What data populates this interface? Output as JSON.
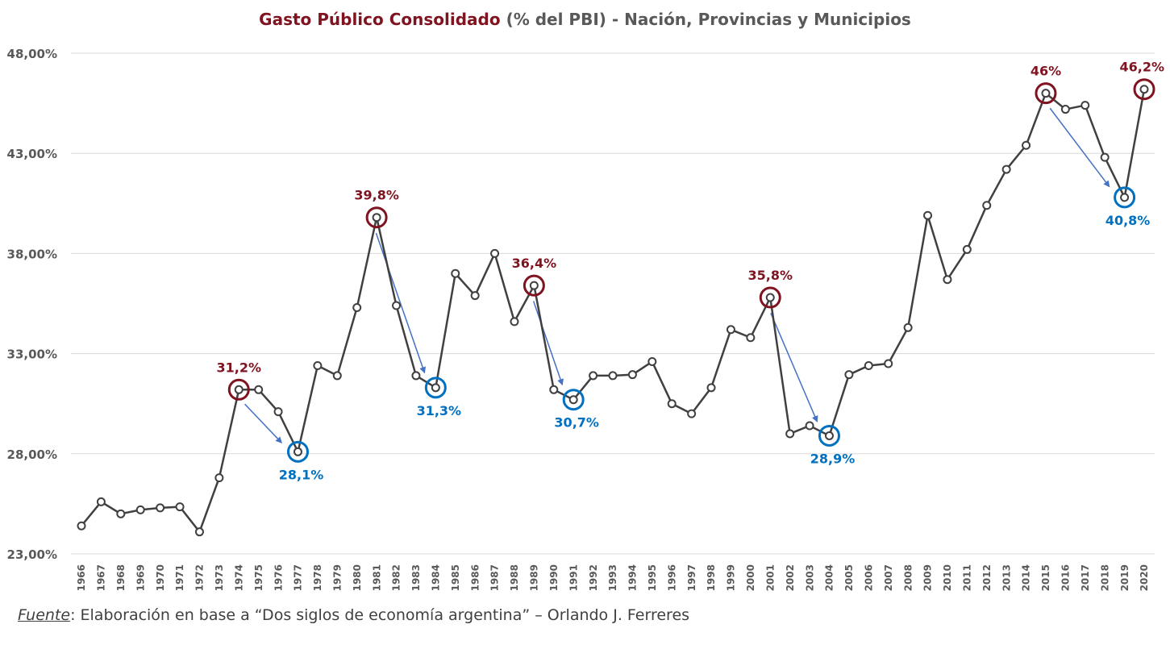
{
  "title": {
    "main": "Gasto Público Consolidado",
    "rest": " (% del PBI) - Nación, Provincias y Municipios"
  },
  "source": {
    "label": "Fuente",
    "text": ": Elaboración en base a “Dos siglos de economía argentina” – Orlando J. Ferreres"
  },
  "colors": {
    "line": "#404040",
    "peak": "#7f1420",
    "trough": "#0070c0",
    "arrow": "#4472c4",
    "grid": "#d9d9d9",
    "axis_text": "#595959"
  },
  "chart_data": {
    "type": "line",
    "x": [
      "1966",
      "1967",
      "1968",
      "1969",
      "1970",
      "1971",
      "1972",
      "1973",
      "1974",
      "1975",
      "1976",
      "1977",
      "1978",
      "1979",
      "1980",
      "1981",
      "1982",
      "1983",
      "1984",
      "1985",
      "1986",
      "1987",
      "1988",
      "1989",
      "1990",
      "1991",
      "1992",
      "1993",
      "1994",
      "1995",
      "1996",
      "1997",
      "1998",
      "1999",
      "2000",
      "2001",
      "2002",
      "2003",
      "2004",
      "2005",
      "2006",
      "2007",
      "2008",
      "2009",
      "2010",
      "2011",
      "2012",
      "2013",
      "2014",
      "2015",
      "2016",
      "2017",
      "2018",
      "2019",
      "2020"
    ],
    "series": [
      {
        "values": [
          24.4,
          25.6,
          25.0,
          25.2,
          25.3,
          25.35,
          24.1,
          26.8,
          31.2,
          31.2,
          30.1,
          28.1,
          32.4,
          31.9,
          35.3,
          39.8,
          35.4,
          31.9,
          31.3,
          37.0,
          35.9,
          38.0,
          34.6,
          36.4,
          31.2,
          30.7,
          31.9,
          31.9,
          31.95,
          32.6,
          30.5,
          30.0,
          31.3,
          34.2,
          33.8,
          35.8,
          29.0,
          29.4,
          28.9,
          31.95,
          32.4,
          32.5,
          34.3,
          39.9,
          36.7,
          38.2,
          40.4,
          42.2,
          43.4,
          46.0,
          45.2,
          45.4,
          42.8,
          40.8,
          46.2
        ]
      }
    ],
    "ylim": [
      23,
      48
    ],
    "yticks": [
      "23,00%",
      "28,00%",
      "33,00%",
      "38,00%",
      "43,00%",
      "48,00%"
    ],
    "ytick_values": [
      23,
      28,
      33,
      38,
      43,
      48
    ],
    "grid": true,
    "annotations": {
      "peaks": [
        {
          "year": "1974",
          "label": "31,2%"
        },
        {
          "year": "1981",
          "label": "39,8%"
        },
        {
          "year": "1989",
          "label": "36,4%"
        },
        {
          "year": "2001",
          "label": "35,8%"
        },
        {
          "year": "2015",
          "label": "46%"
        },
        {
          "year": "2020",
          "label": "46,2%"
        }
      ],
      "troughs": [
        {
          "year": "1977",
          "label": "28,1%"
        },
        {
          "year": "1984",
          "label": "31,3%"
        },
        {
          "year": "1991",
          "label": "30,7%"
        },
        {
          "year": "2004",
          "label": "28,9%"
        },
        {
          "year": "2019",
          "label": "40,8%"
        }
      ],
      "arrows": [
        {
          "from": "1974",
          "to": "1977"
        },
        {
          "from": "1981",
          "to": "1984"
        },
        {
          "from": "1989",
          "to": "1991"
        },
        {
          "from": "2001",
          "to": "2004"
        },
        {
          "from": "2015",
          "to": "2019"
        }
      ]
    }
  }
}
